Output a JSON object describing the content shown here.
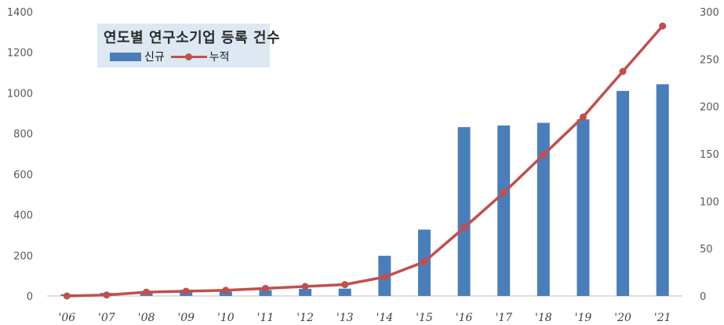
{
  "chart_data": {
    "type": "bar",
    "title": "연도별 연구소기업 등록 건수",
    "categories": [
      "'06",
      "'07",
      "'08",
      "'09",
      "'10",
      "'11",
      "'12",
      "'13",
      "'14",
      "'15",
      "'16",
      "'17",
      "'18",
      "'19",
      "'20",
      "'21"
    ],
    "series": [
      {
        "name": "신규",
        "type": "bar",
        "axis": "left",
        "color": "#4a7ebb",
        "values": [
          8,
          15,
          24,
          30,
          22,
          29,
          35,
          36,
          198,
          327,
          832,
          840,
          853,
          870,
          1010,
          1043
        ]
      },
      {
        "name": "누적",
        "type": "line",
        "axis": "right",
        "color": "#c0504d",
        "values": [
          0,
          1,
          4,
          5,
          6,
          8,
          10,
          12,
          20,
          36,
          72,
          109,
          149,
          189,
          237,
          285
        ]
      }
    ],
    "y_left": {
      "range": [
        0,
        1400
      ],
      "ticks": [
        "0",
        "200",
        "400",
        "600",
        "800",
        "1000",
        "1200",
        "1400"
      ]
    },
    "y_right": {
      "range": [
        0,
        300
      ],
      "ticks": [
        "0",
        "50",
        "100",
        "150",
        "200",
        "250",
        "300"
      ]
    },
    "grid": false,
    "legend": "top-left"
  }
}
